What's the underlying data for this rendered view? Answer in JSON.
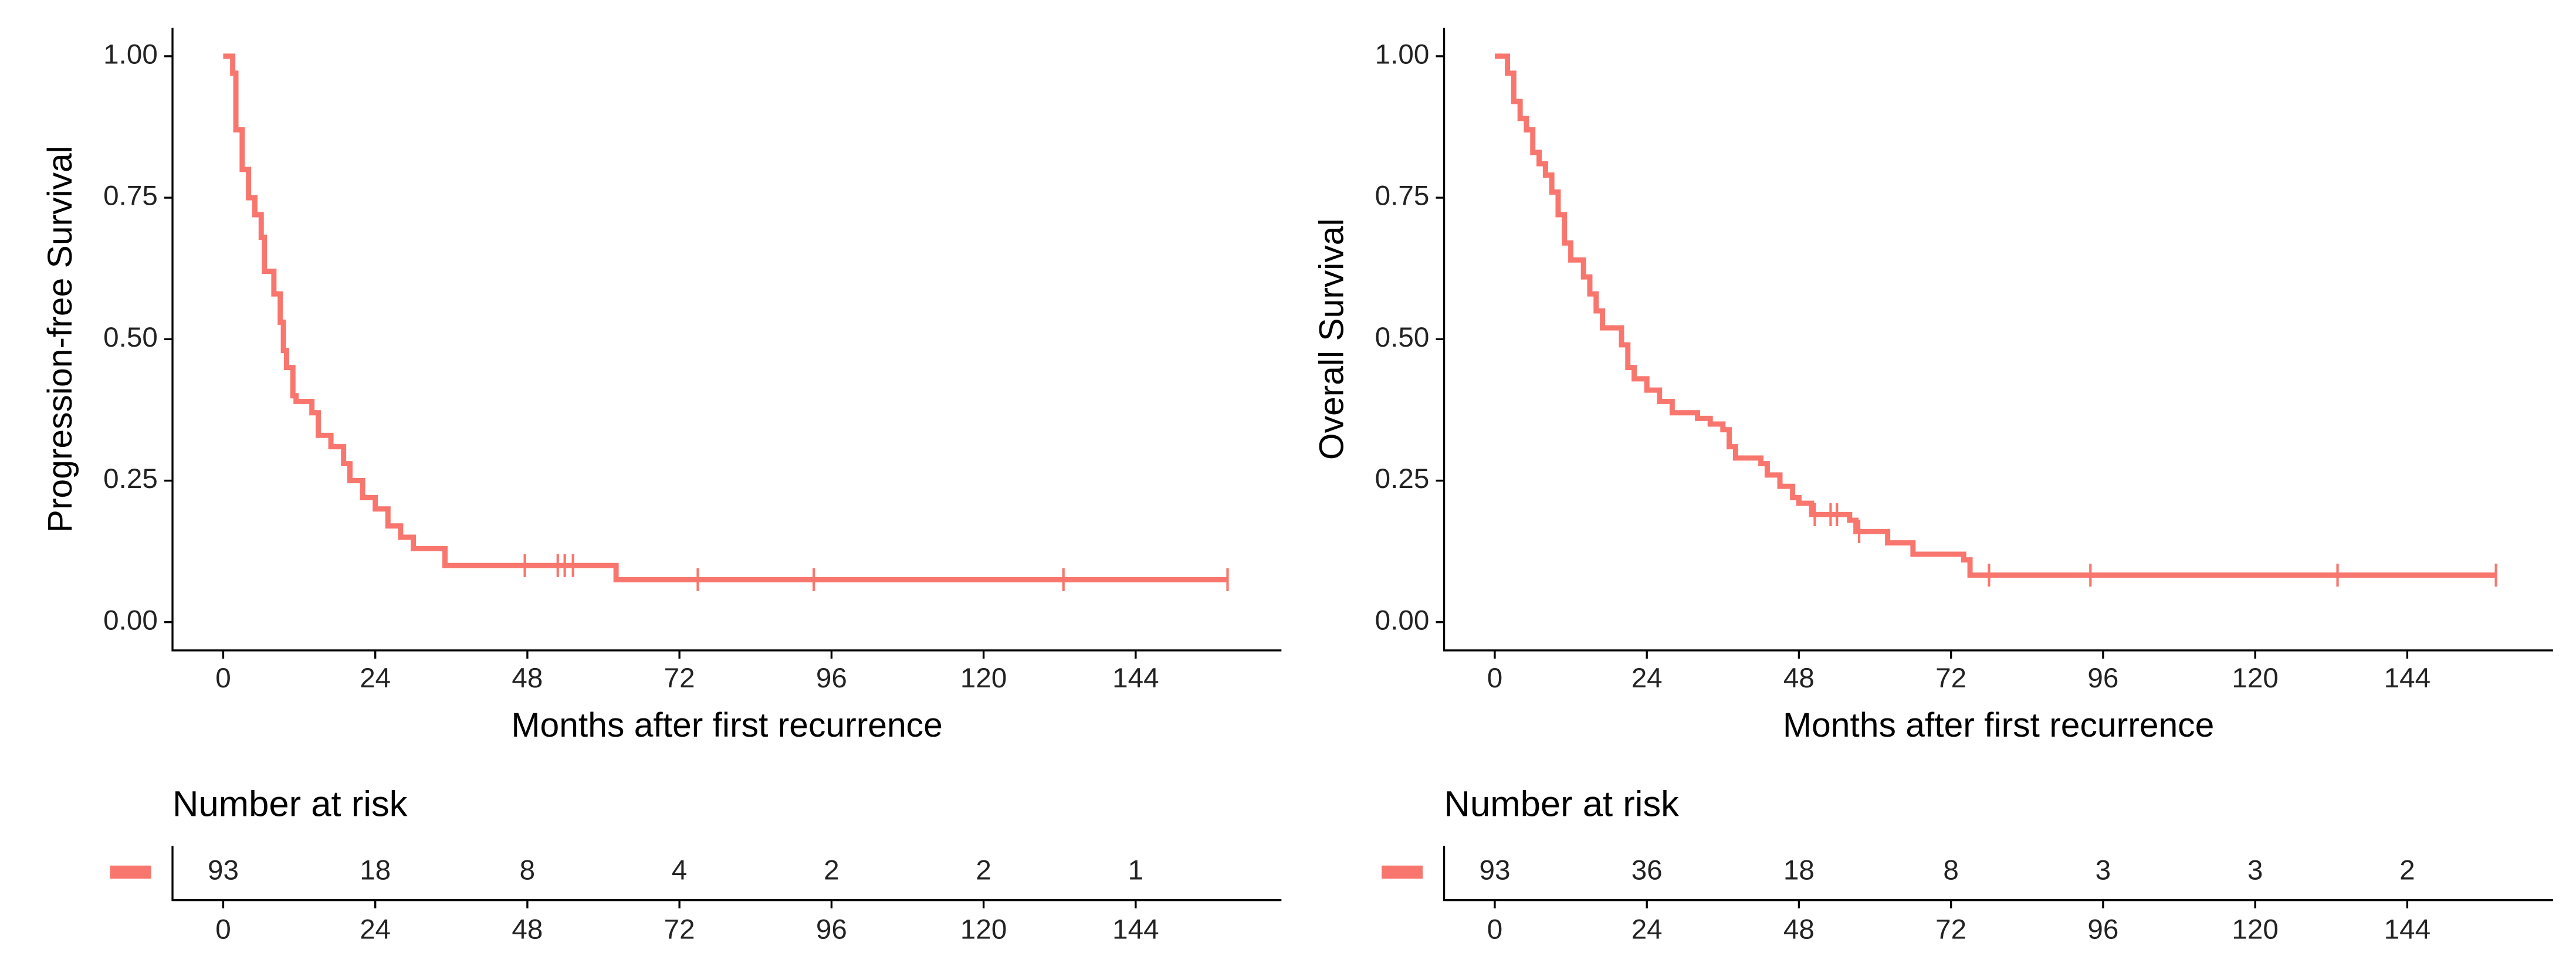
{
  "chart_data": [
    {
      "type": "step",
      "ylabel": "Progression-free Survival",
      "xlabel": "Months after first recurrence",
      "color": "#f8766d",
      "x": [
        0,
        1.5,
        2,
        3,
        4,
        5,
        6,
        6.5,
        8,
        9,
        9.5,
        10,
        11,
        11.5,
        14,
        15,
        17,
        19,
        20,
        22,
        24,
        26,
        28,
        30,
        35,
        62
      ],
      "values": [
        1.0,
        0.97,
        0.87,
        0.8,
        0.75,
        0.72,
        0.68,
        0.62,
        0.58,
        0.53,
        0.48,
        0.45,
        0.4,
        0.39,
        0.37,
        0.33,
        0.31,
        0.28,
        0.25,
        0.22,
        0.2,
        0.17,
        0.15,
        0.13,
        0.1,
        0.075
      ],
      "censored": {
        "x": [
          47.6,
          52.8,
          53.9,
          55.2,
          74.9,
          93.2,
          132.6,
          158.5
        ],
        "values": [
          0.1,
          0.1,
          0.1,
          0.1,
          0.075,
          0.075,
          0.075,
          0.075
        ]
      },
      "xlim": [
        -8,
        167
      ],
      "xticks": [
        0,
        24,
        48,
        72,
        96,
        120,
        144
      ],
      "ylim": [
        -0.05,
        1.05
      ],
      "yticks": [
        {
          "value": 0,
          "label": "0.00"
        },
        {
          "value": 0.25,
          "label": "0.25"
        },
        {
          "value": 0.5,
          "label": "0.50"
        },
        {
          "value": 0.75,
          "label": "0.75"
        },
        {
          "value": 1,
          "label": "1.00"
        }
      ],
      "risk_table": {
        "title": "Number at risk",
        "times": [
          0,
          24,
          48,
          72,
          96,
          120,
          144
        ],
        "counts": [
          93,
          18,
          8,
          4,
          2,
          2,
          1
        ]
      }
    },
    {
      "type": "step",
      "ylabel": "Overall Survival",
      "xlabel": "Months after first recurrence",
      "color": "#f8766d",
      "x": [
        0,
        2,
        3,
        4,
        5,
        6,
        7,
        8,
        9,
        10,
        11,
        12,
        14,
        15,
        16,
        17,
        20,
        21,
        22,
        24,
        26,
        28,
        32,
        34,
        36,
        37,
        38,
        42,
        43,
        45,
        47,
        48,
        50,
        56,
        57,
        62,
        66,
        74,
        75
      ],
      "values": [
        1.0,
        0.97,
        0.92,
        0.89,
        0.87,
        0.83,
        0.81,
        0.79,
        0.76,
        0.72,
        0.67,
        0.64,
        0.61,
        0.58,
        0.55,
        0.52,
        0.49,
        0.45,
        0.43,
        0.41,
        0.39,
        0.37,
        0.36,
        0.35,
        0.34,
        0.31,
        0.29,
        0.28,
        0.26,
        0.24,
        0.22,
        0.21,
        0.19,
        0.18,
        0.16,
        0.14,
        0.12,
        0.11,
        0.083
      ],
      "censored": {
        "x": [
          50.5,
          53,
          54,
          57.5,
          78,
          94,
          133,
          158
        ],
        "values": [
          0.19,
          0.19,
          0.19,
          0.16,
          0.083,
          0.083,
          0.083,
          0.083
        ]
      },
      "xlim": [
        -8,
        167
      ],
      "xticks": [
        0,
        24,
        48,
        72,
        96,
        120,
        144
      ],
      "ylim": [
        -0.05,
        1.05
      ],
      "yticks": [
        {
          "value": 0,
          "label": "0.00"
        },
        {
          "value": 0.25,
          "label": "0.25"
        },
        {
          "value": 0.5,
          "label": "0.50"
        },
        {
          "value": 0.75,
          "label": "0.75"
        },
        {
          "value": 1,
          "label": "1.00"
        }
      ],
      "risk_table": {
        "title": "Number at risk",
        "times": [
          0,
          24,
          48,
          72,
          96,
          120,
          144
        ],
        "counts": [
          93,
          36,
          18,
          8,
          3,
          3,
          2
        ]
      }
    }
  ]
}
